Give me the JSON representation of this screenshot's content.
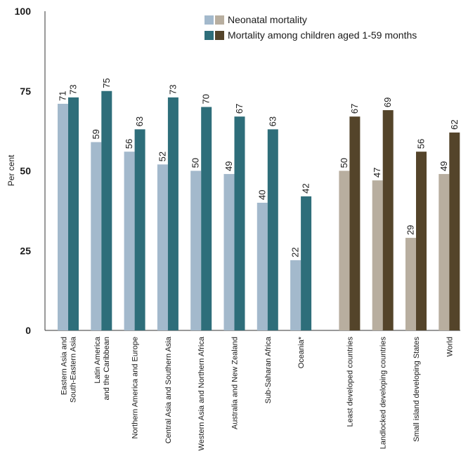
{
  "chart_data": {
    "type": "bar",
    "ylabel": "Per cent",
    "ylim": [
      0,
      100
    ],
    "yticks": [
      "0",
      "25",
      "50",
      "75",
      "100"
    ],
    "grid": false,
    "legend_position": "top-right",
    "categories": [
      [
        "Eastern Asia and",
        "South-Eastern Asia"
      ],
      [
        "Latin America",
        "and the Caribbean"
      ],
      [
        "Northern America and Europe"
      ],
      [
        "Central Asia and Southern Asia"
      ],
      [
        "Western Asia and Northern Africa"
      ],
      [
        "Australia and New Zealand"
      ],
      [
        "Sub-Saharan Africa"
      ],
      [
        "Oceania*"
      ],
      [
        "Least developed countries"
      ],
      [
        "Landlocked developing countries"
      ],
      [
        "Small island developing States"
      ],
      [
        "World"
      ]
    ],
    "groups": [
      "regions",
      "regions",
      "regions",
      "regions",
      "regions",
      "regions",
      "regions",
      "regions",
      "special",
      "special",
      "special",
      "special"
    ],
    "series": [
      {
        "name": "Neonatal mortality",
        "values": [
          71,
          59,
          56,
          52,
          50,
          49,
          40,
          22,
          50,
          47,
          29,
          49
        ],
        "colors": {
          "regions": "#a3b9cc",
          "special": "#b8ae9f"
        }
      },
      {
        "name": "Mortality among children aged 1-59 months",
        "values": [
          73,
          75,
          63,
          73,
          70,
          67,
          63,
          42,
          67,
          69,
          56,
          62
        ],
        "colors": {
          "regions": "#2e6e7a",
          "special": "#54442a"
        }
      }
    ]
  }
}
